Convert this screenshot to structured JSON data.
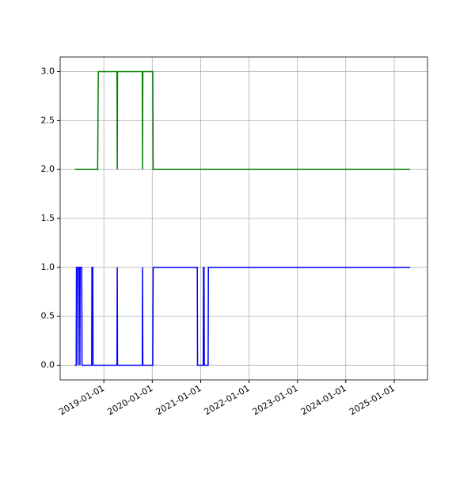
{
  "chart_data": {
    "type": "line",
    "x": [
      "2018-05-27",
      "2018-06-06",
      "2018-06-08",
      "2018-06-18",
      "2018-06-20",
      "2018-06-22",
      "2018-07-02",
      "2018-07-04",
      "2018-07-06",
      "2018-07-18",
      "2018-07-20",
      "2018-10-01",
      "2018-10-03",
      "2018-10-09",
      "2018-10-11",
      "2018-11-15",
      "2018-11-20",
      "2019-04-10",
      "2019-04-12",
      "2019-04-14",
      "2019-10-18",
      "2019-10-20",
      "2019-10-22",
      "2020-01-05",
      "2020-01-08",
      "2020-12-06",
      "2020-12-08",
      "2021-01-20",
      "2021-01-22",
      "2021-01-26",
      "2021-01-28",
      "2021-02-26",
      "2021-02-28",
      "2025-05-01"
    ],
    "series": [
      {
        "color": "#008000",
        "values": [
          2,
          2,
          2,
          2,
          2,
          2,
          2,
          2,
          2,
          2,
          2,
          2,
          2,
          2,
          2,
          2,
          3,
          3,
          2,
          3,
          3,
          2,
          3,
          3,
          2,
          2,
          2,
          2,
          2,
          2,
          2,
          2,
          2,
          2
        ]
      },
      {
        "color": "#0000ff",
        "values": [
          0,
          0,
          1,
          1,
          0,
          1,
          1,
          0,
          1,
          1,
          0,
          0,
          1,
          1,
          0,
          0,
          0,
          0,
          1,
          0,
          0,
          1,
          0,
          0,
          1,
          1,
          0,
          0,
          1,
          1,
          0,
          0,
          1,
          1
        ]
      }
    ],
    "xlim": [
      "2018-02-05",
      "2025-09-09"
    ],
    "xticks": [
      "2019-01-01",
      "2020-01-01",
      "2021-01-01",
      "2022-01-01",
      "2023-01-01",
      "2024-01-01",
      "2025-01-01"
    ],
    "ylim": [
      -0.15,
      3.15
    ],
    "yticks": [
      {
        "value": 0,
        "label": "0.0"
      },
      0.5,
      {
        "value": 1,
        "label": "1.0"
      },
      1.5,
      {
        "value": 2,
        "label": "2.0"
      },
      2.5,
      {
        "value": 3,
        "label": "3.0"
      }
    ],
    "grid": true
  }
}
